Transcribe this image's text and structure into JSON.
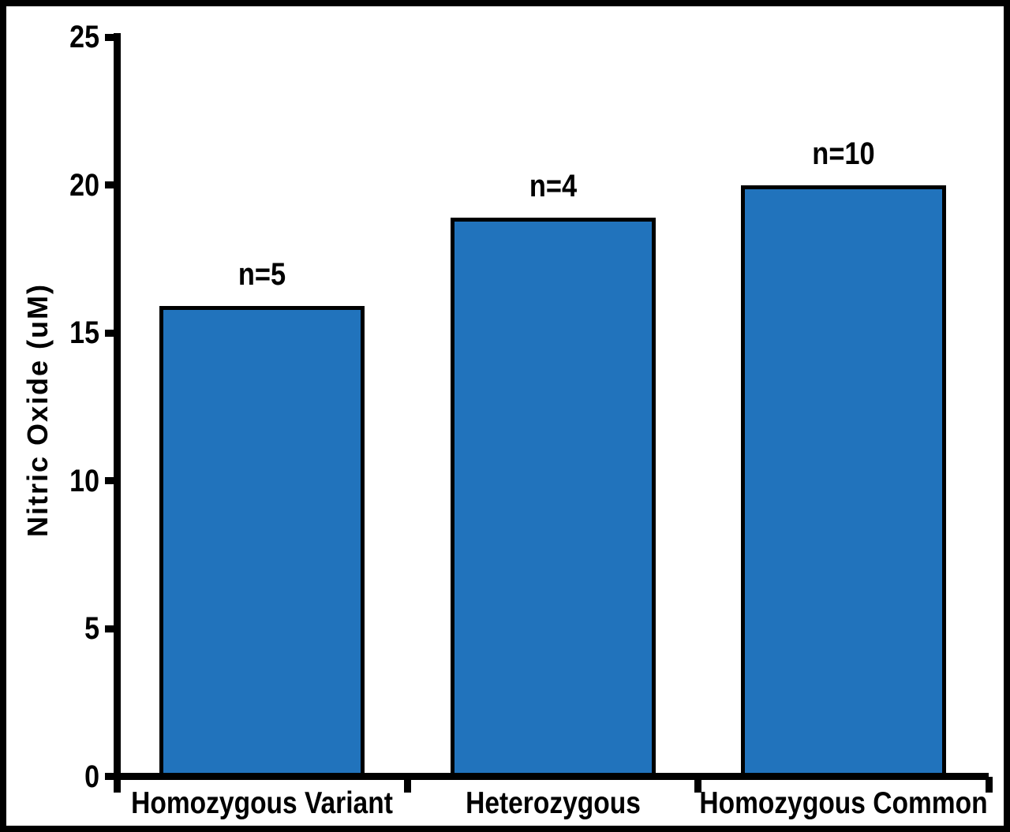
{
  "figure": {
    "background_color": "#ffffff",
    "frame_border_color": "#000000"
  },
  "chart_data": {
    "type": "bar",
    "title": "",
    "xlabel": "",
    "ylabel": "Nitric Oxide (uM)",
    "categories": [
      "Homozygous Variant",
      "Heterozygous",
      "Homozygous Common"
    ],
    "values": [
      15.9,
      18.9,
      20.0
    ],
    "bar_labels": [
      "n=5",
      "n=4",
      "n=10"
    ],
    "ylim": [
      0,
      25
    ],
    "yticks": [
      0,
      5,
      10,
      15,
      20,
      25
    ],
    "grid": false,
    "legend_position": "none",
    "bar_color": "#2173BC",
    "bar_border_color": "#000000",
    "axis_color": "#000000",
    "text_color": "#000000"
  }
}
